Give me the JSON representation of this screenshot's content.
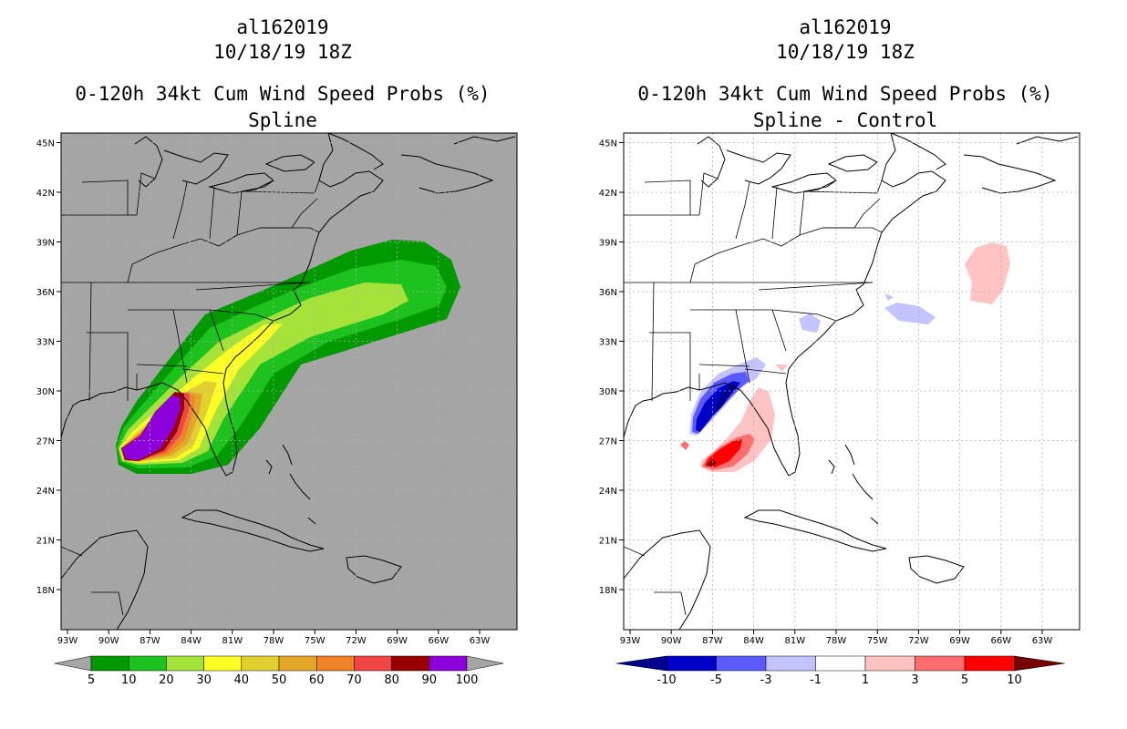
{
  "left": {
    "storm_id": "al162019",
    "datetime": "10/18/19 18Z",
    "product": "0-120h 34kt Cum Wind Speed Probs (%)",
    "subtitle": "Spline",
    "colorbar": {
      "labels": [
        "5",
        "10",
        "20",
        "30",
        "40",
        "50",
        "60",
        "70",
        "80",
        "90",
        "100"
      ],
      "colors": [
        "#009a00",
        "#1ec21e",
        "#a5e23a",
        "#ffff28",
        "#e2d030",
        "#e2a628",
        "#f08228",
        "#f04646",
        "#960000",
        "#8c00dc"
      ],
      "end_color": "#a5a5a5"
    }
  },
  "right": {
    "storm_id": "al162019",
    "datetime": "10/18/19 18Z",
    "product": "0-120h 34kt Cum Wind Speed Probs (%)",
    "subtitle": "Spline - Control",
    "colorbar": {
      "labels": [
        "-10",
        "-5",
        "-3",
        "-1",
        "1",
        "3",
        "5",
        "10"
      ],
      "colors": [
        "#0000c8",
        "#5a5aff",
        "#c3c3ff",
        "#ffffff",
        "#ffc3c3",
        "#ff6e6e",
        "#ff0000"
      ],
      "low_end": "#00008c",
      "high_end": "#780000"
    }
  },
  "axes": {
    "lat_labels": [
      "45N",
      "42N",
      "39N",
      "36N",
      "33N",
      "30N",
      "27N",
      "24N",
      "21N",
      "18N"
    ],
    "lon_labels": [
      "93W",
      "90W",
      "87W",
      "84W",
      "81W",
      "78W",
      "75W",
      "72W",
      "69W",
      "66W",
      "63W"
    ]
  },
  "colors": {
    "map_bg_left": "#a5a5a5",
    "map_bg_right": "#ffffff",
    "coast": "#000000"
  }
}
